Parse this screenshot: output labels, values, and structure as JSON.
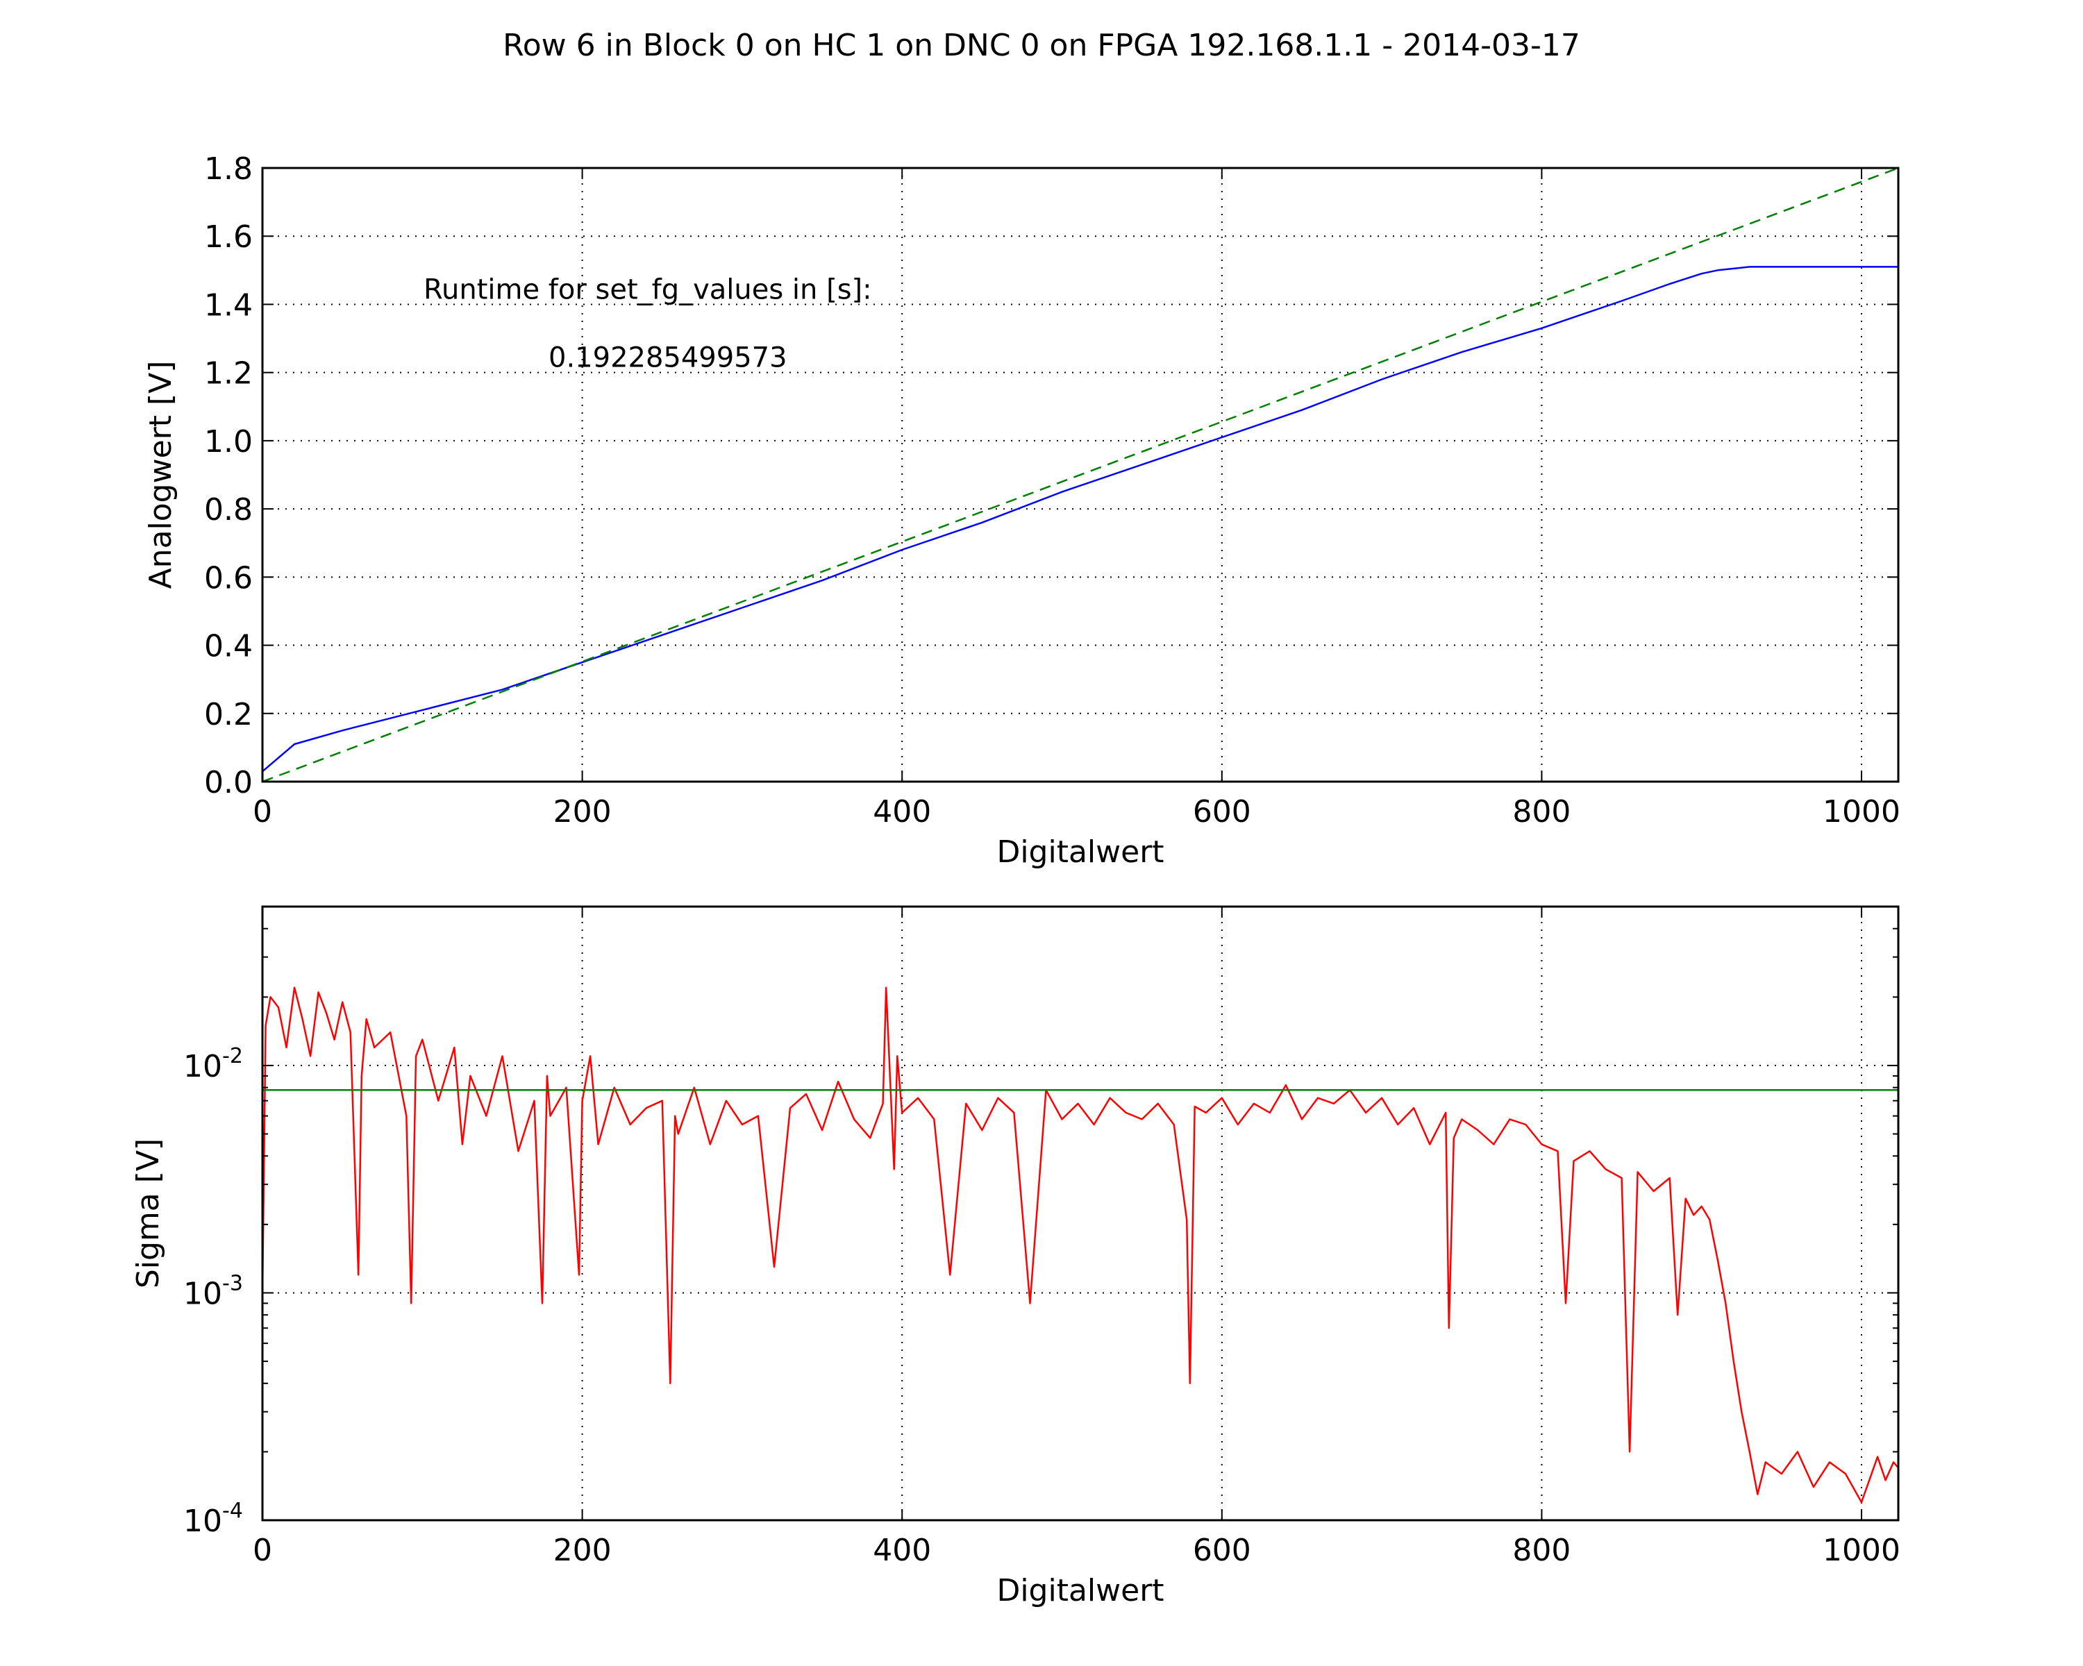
{
  "figure": {
    "title": "Row 6 in Block 0 on HC 1 on DNC 0 on FPGA 192.168.1.1 - 2014-03-17"
  },
  "chart_data": [
    {
      "type": "line",
      "xlabel": "Digitalwert",
      "ylabel": "Analogwert [V]",
      "xlim": [
        0,
        1023
      ],
      "ylim": [
        0,
        1.8
      ],
      "xticks": [
        0,
        200,
        400,
        600,
        800,
        1000
      ],
      "xtick_labels": [
        "0",
        "200",
        "400",
        "600",
        "800",
        "1000"
      ],
      "yticks": [
        0,
        0.2,
        0.4,
        0.6,
        0.8,
        1.0,
        1.2,
        1.4,
        1.6,
        1.8
      ],
      "ytick_labels": [
        "0.0",
        "0.2",
        "0.4",
        "0.6",
        "0.8",
        "1.0",
        "1.2",
        "1.4",
        "1.6",
        "1.8"
      ],
      "grid": true,
      "annotations": [
        "Runtime for set_fg_values in [s]:",
        "0.192285499573"
      ],
      "series": [
        {
          "style": "solid",
          "color": "#0000ff",
          "x": [
            0,
            20,
            50,
            100,
            150,
            200,
            250,
            300,
            350,
            400,
            450,
            500,
            550,
            600,
            650,
            700,
            750,
            800,
            850,
            880,
            900,
            910,
            920,
            930,
            950,
            1000,
            1023
          ],
          "y": [
            0.03,
            0.11,
            0.15,
            0.21,
            0.27,
            0.35,
            0.43,
            0.51,
            0.59,
            0.68,
            0.76,
            0.85,
            0.93,
            1.01,
            1.09,
            1.18,
            1.26,
            1.33,
            1.41,
            1.46,
            1.49,
            1.5,
            1.505,
            1.51,
            1.51,
            1.51,
            1.51
          ]
        },
        {
          "style": "dashed",
          "color": "#008000",
          "x": [
            0,
            1023
          ],
          "y": [
            0,
            1.8
          ]
        }
      ]
    },
    {
      "type": "line",
      "xlabel": "Digitalwert",
      "ylabel": "Sigma [V]",
      "xlim": [
        0,
        1023
      ],
      "ylim": [
        0.0001,
        0.05
      ],
      "yscale": "log",
      "xticks": [
        0,
        200,
        400,
        600,
        800,
        1000
      ],
      "xtick_labels": [
        "0",
        "200",
        "400",
        "600",
        "800",
        "1000"
      ],
      "yticks": [
        0.0001,
        0.001,
        0.01
      ],
      "ytick_labels": [
        "10",
        "10",
        "10"
      ],
      "ytick_exponents": [
        "-4",
        "-3",
        "-2"
      ],
      "grid": true,
      "series": [
        {
          "style": "solid",
          "color": "#ff0000",
          "x": [
            0,
            2,
            5,
            10,
            15,
            20,
            25,
            30,
            35,
            40,
            45,
            50,
            55,
            60,
            62,
            65,
            70,
            80,
            90,
            93,
            96,
            100,
            110,
            120,
            125,
            130,
            140,
            150,
            160,
            170,
            175,
            178,
            180,
            190,
            198,
            200,
            205,
            210,
            220,
            230,
            240,
            250,
            255,
            258,
            260,
            270,
            280,
            290,
            300,
            310,
            320,
            330,
            340,
            350,
            360,
            370,
            380,
            388,
            390,
            395,
            397,
            400,
            410,
            420,
            430,
            440,
            450,
            460,
            470,
            480,
            490,
            500,
            510,
            520,
            530,
            540,
            550,
            560,
            570,
            578,
            580,
            583,
            590,
            600,
            610,
            620,
            630,
            640,
            650,
            660,
            670,
            680,
            690,
            700,
            710,
            720,
            730,
            740,
            742,
            745,
            750,
            760,
            770,
            780,
            790,
            800,
            810,
            815,
            820,
            830,
            840,
            850,
            855,
            860,
            870,
            880,
            885,
            890,
            895,
            900,
            905,
            910,
            915,
            920,
            925,
            930,
            935,
            940,
            950,
            960,
            970,
            980,
            990,
            1000,
            1010,
            1015,
            1020,
            1023
          ],
          "y": [
            0.001,
            0.015,
            0.02,
            0.018,
            0.012,
            0.022,
            0.016,
            0.011,
            0.021,
            0.017,
            0.013,
            0.019,
            0.014,
            0.0012,
            0.009,
            0.016,
            0.012,
            0.014,
            0.006,
            0.0009,
            0.011,
            0.013,
            0.007,
            0.012,
            0.0045,
            0.009,
            0.006,
            0.011,
            0.0042,
            0.007,
            0.0009,
            0.009,
            0.006,
            0.008,
            0.0012,
            0.007,
            0.011,
            0.0045,
            0.008,
            0.0055,
            0.0065,
            0.007,
            0.0004,
            0.006,
            0.005,
            0.008,
            0.0045,
            0.007,
            0.0055,
            0.006,
            0.0013,
            0.0065,
            0.0075,
            0.0052,
            0.0085,
            0.0058,
            0.0048,
            0.0068,
            0.022,
            0.0035,
            0.011,
            0.0062,
            0.0072,
            0.0058,
            0.0012,
            0.0068,
            0.0052,
            0.0072,
            0.0062,
            0.0009,
            0.0078,
            0.0058,
            0.0068,
            0.0055,
            0.0072,
            0.0062,
            0.0058,
            0.0068,
            0.0055,
            0.0021,
            0.0004,
            0.0066,
            0.0062,
            0.0072,
            0.0055,
            0.0068,
            0.0062,
            0.0082,
            0.0058,
            0.0072,
            0.0068,
            0.0078,
            0.0062,
            0.0072,
            0.0055,
            0.0065,
            0.0045,
            0.0062,
            0.0007,
            0.0048,
            0.0058,
            0.0052,
            0.0045,
            0.0058,
            0.0055,
            0.0045,
            0.0042,
            0.0009,
            0.0038,
            0.0042,
            0.0035,
            0.0032,
            0.0002,
            0.0034,
            0.0028,
            0.0032,
            0.0008,
            0.0026,
            0.0022,
            0.0024,
            0.0021,
            0.0014,
            0.0009,
            0.0005,
            0.0003,
            0.0002,
            0.00013,
            0.00018,
            0.00016,
            0.0002,
            0.00014,
            0.00018,
            0.00016,
            0.00012,
            0.00019,
            0.00015,
            0.00018,
            0.00017
          ]
        },
        {
          "style": "solid",
          "color": "#008000",
          "x": [
            0,
            1023
          ],
          "y": [
            0.0078,
            0.0078
          ]
        }
      ]
    }
  ]
}
